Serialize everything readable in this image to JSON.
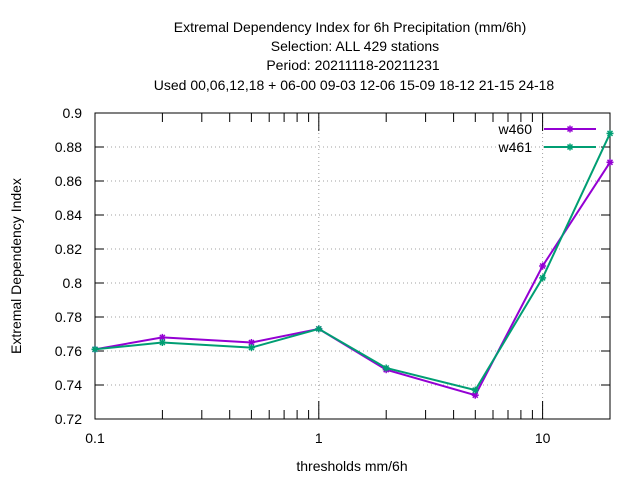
{
  "chart_data": {
    "type": "line",
    "title_lines": [
      "Extremal Dependency Index  for 6h Precipitation (mm/6h)",
      "Selection: ALL     429 stations",
      "Period: 20211118-20211231",
      "Used  00,06,12,18  + 06-00 09-03 12-06 15-09 18-12 21-15 24-18"
    ],
    "xlabel": "thresholds mm/6h",
    "ylabel": "Extremal Dependency Index",
    "x_scale": "log",
    "xlim": [
      0.1,
      20
    ],
    "ylim": [
      0.72,
      0.9
    ],
    "x_ticks": [
      0.1,
      1,
      10
    ],
    "x_tick_labels": [
      "0.1",
      "1",
      "10"
    ],
    "x_minor_ticks": [
      0.2,
      0.3,
      0.4,
      0.5,
      0.6,
      0.7,
      0.8,
      0.9,
      2,
      3,
      4,
      5,
      6,
      7,
      8,
      9,
      20
    ],
    "y_ticks": [
      0.72,
      0.74,
      0.76,
      0.78,
      0.8,
      0.82,
      0.84,
      0.86,
      0.88,
      0.9
    ],
    "y_tick_labels": [
      "0.72",
      "0.74",
      "0.76",
      "0.78",
      "0.8",
      "0.82",
      "0.84",
      "0.86",
      "0.88",
      "0.9"
    ],
    "grid": true,
    "legend_position": "top-right",
    "x": [
      0.1,
      0.2,
      0.5,
      1,
      2,
      5,
      10,
      20
    ],
    "series": [
      {
        "name": "w460",
        "color": "#9400d3",
        "values": [
          0.761,
          0.768,
          0.765,
          0.773,
          0.749,
          0.734,
          0.81,
          0.871
        ]
      },
      {
        "name": "w461",
        "color": "#009e73",
        "values": [
          0.761,
          0.765,
          0.762,
          0.773,
          0.75,
          0.737,
          0.803,
          0.888
        ]
      }
    ]
  }
}
